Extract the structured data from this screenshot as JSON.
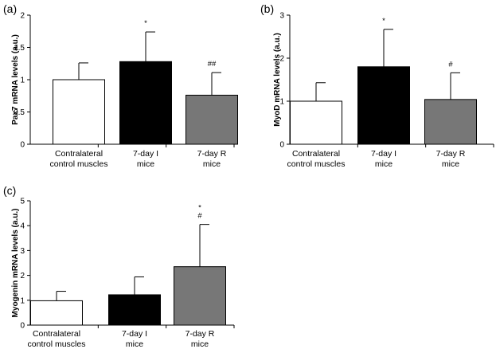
{
  "chart_data": [
    {
      "panel_label": "(a)",
      "type": "bar",
      "categories": [
        [
          "Contralateral",
          "control muscles"
        ],
        [
          "7-day I",
          "mice"
        ],
        [
          "7-day R",
          "mice"
        ]
      ],
      "values": [
        1.0,
        1.28,
        0.76
      ],
      "errors": [
        0.26,
        0.46,
        0.35
      ],
      "bar_colors": [
        "#ffffff",
        "#000000",
        "#777777"
      ],
      "annotations": [
        [],
        [
          "*"
        ],
        [
          "##"
        ]
      ],
      "ylabel": "Pax7 mRNA levels (a.u.)",
      "ylim": [
        0,
        2
      ],
      "yticks": [
        "0",
        "0.5",
        "1",
        "1.5",
        "2"
      ],
      "ytick_values": [
        0,
        0.5,
        1,
        1.5,
        2
      ],
      "grid": false
    },
    {
      "panel_label": "(b)",
      "type": "bar",
      "categories": [
        [
          "Contralateral",
          "control muscles"
        ],
        [
          "7-day I",
          "mice"
        ],
        [
          "7-day R",
          "mice"
        ]
      ],
      "values": [
        1.0,
        1.8,
        1.04
      ],
      "errors": [
        0.43,
        0.87,
        0.62
      ],
      "bar_colors": [
        "#ffffff",
        "#000000",
        "#777777"
      ],
      "annotations": [
        [],
        [
          "*"
        ],
        [
          "#"
        ]
      ],
      "ylabel": "MyoD mRNA levels (a.u.)",
      "ylim": [
        0,
        3
      ],
      "yticks": [
        "0",
        "1",
        "2",
        "3"
      ],
      "ytick_values": [
        0,
        1,
        2,
        3
      ],
      "grid": false
    },
    {
      "panel_label": "(c)",
      "type": "bar",
      "categories": [
        [
          "Contralateral",
          "control muscles"
        ],
        [
          "7-day I",
          "mice"
        ],
        [
          "7-day R",
          "mice"
        ]
      ],
      "values": [
        0.98,
        1.22,
        2.35
      ],
      "errors": [
        0.38,
        0.72,
        1.7
      ],
      "bar_colors": [
        "#ffffff",
        "#000000",
        "#777777"
      ],
      "annotations": [
        [],
        [],
        [
          "*",
          "#"
        ]
      ],
      "ylabel": "Myogenin mRNA levels (a.u.)",
      "ylim": [
        0,
        5
      ],
      "yticks": [
        "0",
        "1",
        "2",
        "3",
        "4",
        "5"
      ],
      "ytick_values": [
        0,
        1,
        2,
        3,
        4,
        5
      ],
      "grid": false
    }
  ]
}
